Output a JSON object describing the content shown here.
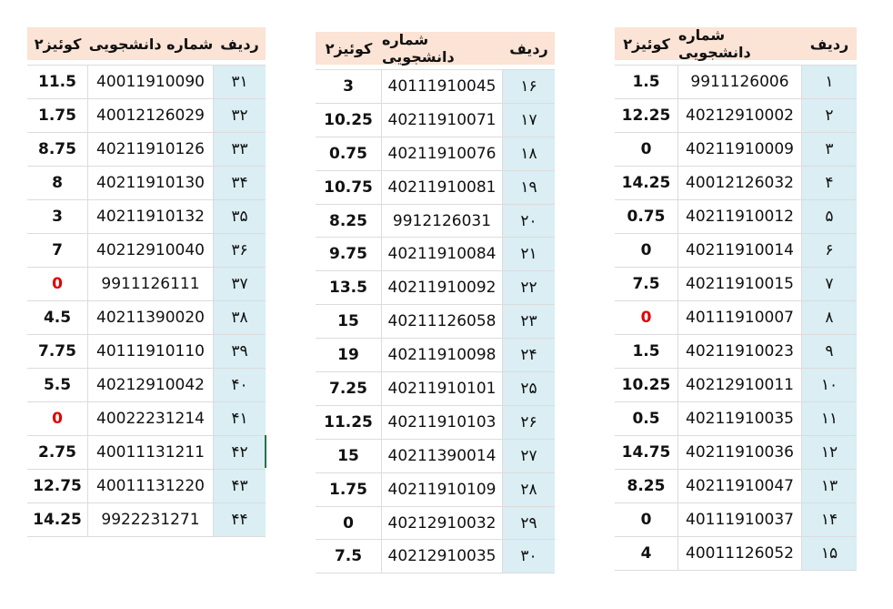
{
  "headers": {
    "score": "کوئیز۲",
    "student_id": "شماره دانشجویی",
    "row": "ردیف"
  },
  "colors": {
    "header_bg": "#fbe3d5",
    "row_col_bg": "#daeef3",
    "zero_highlight": "#e00000"
  },
  "tables": [
    {
      "rows": [
        {
          "row": "۳۱",
          "id": "40011910090",
          "score": "11.5"
        },
        {
          "row": "۳۲",
          "id": "40012126029",
          "score": "1.75"
        },
        {
          "row": "۳۳",
          "id": "40211910126",
          "score": "8.75"
        },
        {
          "row": "۳۴",
          "id": "40211910130",
          "score": "8"
        },
        {
          "row": "۳۵",
          "id": "40211910132",
          "score": "3"
        },
        {
          "row": "۳۶",
          "id": "40212910040",
          "score": "7"
        },
        {
          "row": "۳۷",
          "id": "9911126111",
          "score": "0",
          "red": true
        },
        {
          "row": "۳۸",
          "id": "40211390020",
          "score": "4.5"
        },
        {
          "row": "۳۹",
          "id": "40111910110",
          "score": "7.75"
        },
        {
          "row": "۴۰",
          "id": "40212910042",
          "score": "5.5"
        },
        {
          "row": "۴۱",
          "id": "40022231214",
          "score": "0",
          "red": true
        },
        {
          "row": "۴۲",
          "id": "40011131211",
          "score": "2.75"
        },
        {
          "row": "۴۳",
          "id": "40011131220",
          "score": "12.75"
        },
        {
          "row": "۴۴",
          "id": "9922231271",
          "score": "14.25"
        }
      ]
    },
    {
      "rows": [
        {
          "row": "۱۶",
          "id": "40111910045",
          "score": "3"
        },
        {
          "row": "۱۷",
          "id": "40211910071",
          "score": "10.25"
        },
        {
          "row": "۱۸",
          "id": "40211910076",
          "score": "0.75"
        },
        {
          "row": "۱۹",
          "id": "40211910081",
          "score": "10.75"
        },
        {
          "row": "۲۰",
          "id": "9912126031",
          "score": "8.25"
        },
        {
          "row": "۲۱",
          "id": "40211910084",
          "score": "9.75"
        },
        {
          "row": "۲۲",
          "id": "40211910092",
          "score": "13.5"
        },
        {
          "row": "۲۳",
          "id": "40211126058",
          "score": "15"
        },
        {
          "row": "۲۴",
          "id": "40211910098",
          "score": "19"
        },
        {
          "row": "۲۵",
          "id": "40211910101",
          "score": "7.25"
        },
        {
          "row": "۲۶",
          "id": "40211910103",
          "score": "11.25"
        },
        {
          "row": "۲۷",
          "id": "40211390014",
          "score": "15"
        },
        {
          "row": "۲۸",
          "id": "40211910109",
          "score": "1.75"
        },
        {
          "row": "۲۹",
          "id": "40212910032",
          "score": "0"
        },
        {
          "row": "۳۰",
          "id": "40212910035",
          "score": "7.5"
        }
      ]
    },
    {
      "rows": [
        {
          "row": "۱",
          "id": "9911126006",
          "score": "1.5"
        },
        {
          "row": "۲",
          "id": "40212910002",
          "score": "12.25"
        },
        {
          "row": "۳",
          "id": "40211910009",
          "score": "0"
        },
        {
          "row": "۴",
          "id": "40012126032",
          "score": "14.25"
        },
        {
          "row": "۵",
          "id": "40211910012",
          "score": "0.75"
        },
        {
          "row": "۶",
          "id": "40211910014",
          "score": "0"
        },
        {
          "row": "۷",
          "id": "40211910015",
          "score": "7.5"
        },
        {
          "row": "۸",
          "id": "40111910007",
          "score": "0",
          "red": true
        },
        {
          "row": "۹",
          "id": "40211910023",
          "score": "1.5"
        },
        {
          "row": "۱۰",
          "id": "40212910011",
          "score": "10.25"
        },
        {
          "row": "۱۱",
          "id": "40211910035",
          "score": "0.5"
        },
        {
          "row": "۱۲",
          "id": "40211910036",
          "score": "14.75"
        },
        {
          "row": "۱۳",
          "id": "40211910047",
          "score": "8.25"
        },
        {
          "row": "۱۴",
          "id": "40111910037",
          "score": "0"
        },
        {
          "row": "۱۵",
          "id": "40011126052",
          "score": "4"
        }
      ]
    }
  ]
}
